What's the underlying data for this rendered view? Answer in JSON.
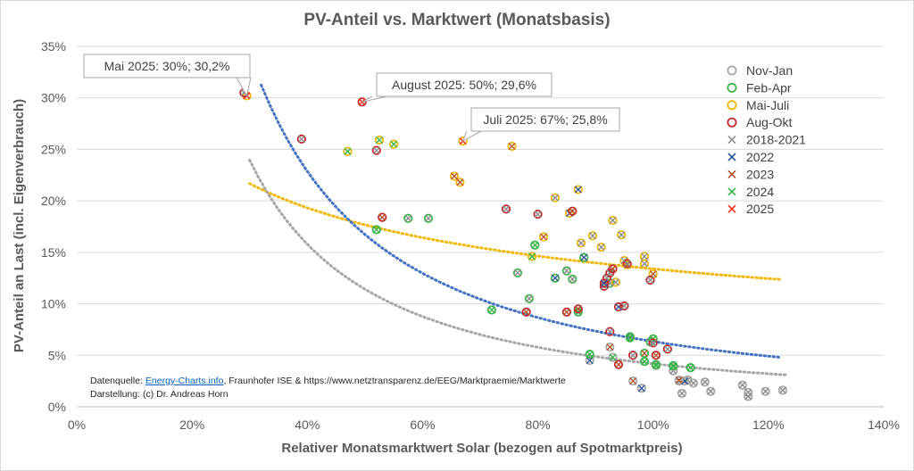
{
  "chart_data": {
    "type": "scatter",
    "title": "PV-Anteil vs. Marktwert (Monatsbasis)",
    "xlabel": "Relativer Monatsmarktwert Solar (bezogen auf Spotmarktpreis)",
    "ylabel": "PV-Anteil an Last (incl. Eigenverbrauch)",
    "xlim": [
      0,
      140
    ],
    "ylim": [
      0,
      35
    ],
    "x_ticks": [
      "0%",
      "20%",
      "40%",
      "60%",
      "80%",
      "100%",
      "120%",
      "140%"
    ],
    "y_ticks": [
      "0%",
      "5%",
      "10%",
      "15%",
      "20%",
      "25%",
      "30%",
      "35%"
    ],
    "grid": true,
    "legend_position": "right",
    "season_colors": {
      "Nov-Jan": "#a6a6a6",
      "Feb-Apr": "#3cb44b",
      "Mai-Juli": "#f2b705",
      "Aug-Okt": "#c0282d"
    },
    "year_colors": {
      "2018-2021": "#8c8c8c",
      "2022": "#2f5597",
      "2023": "#b5532a",
      "2024": "#36b54a",
      "2025": "#ff2a1a"
    },
    "legend": [
      {
        "label": "Nov-Jan",
        "marker": "circle",
        "color": "#a6a6a6"
      },
      {
        "label": "Feb-Apr",
        "marker": "circle",
        "color": "#3cb44b"
      },
      {
        "label": "Mai-Juli",
        "marker": "circle",
        "color": "#f2b705"
      },
      {
        "label": "Aug-Okt",
        "marker": "circle",
        "color": "#c0282d"
      },
      {
        "label": "2018-2021",
        "marker": "cross",
        "color": "#8c8c8c"
      },
      {
        "label": "2022",
        "marker": "cross",
        "color": "#2f5597"
      },
      {
        "label": "2023",
        "marker": "cross",
        "color": "#b5532a"
      },
      {
        "label": "2024",
        "marker": "cross",
        "color": "#36b54a"
      },
      {
        "label": "2025",
        "marker": "cross",
        "color": "#ff2a1a"
      }
    ],
    "points": [
      {
        "x": 104.5,
        "y": 2.5,
        "season": "Nov-Jan",
        "year": "2018-2021"
      },
      {
        "x": 105.0,
        "y": 1.3,
        "season": "Nov-Jan",
        "year": "2018-2021"
      },
      {
        "x": 106.0,
        "y": 2.6,
        "season": "Nov-Jan",
        "year": "2018-2021"
      },
      {
        "x": 107.0,
        "y": 2.3,
        "season": "Nov-Jan",
        "year": "2018-2021"
      },
      {
        "x": 109.0,
        "y": 2.4,
        "season": "Nov-Jan",
        "year": "2018-2021"
      },
      {
        "x": 110.0,
        "y": 1.5,
        "season": "Nov-Jan",
        "year": "2018-2021"
      },
      {
        "x": 115.5,
        "y": 2.1,
        "season": "Nov-Jan",
        "year": "2018-2021"
      },
      {
        "x": 116.5,
        "y": 1.4,
        "season": "Nov-Jan",
        "year": "2018-2021"
      },
      {
        "x": 119.5,
        "y": 1.5,
        "season": "Nov-Jan",
        "year": "2018-2021"
      },
      {
        "x": 122.5,
        "y": 1.6,
        "season": "Nov-Jan",
        "year": "2018-2021"
      },
      {
        "x": 116.5,
        "y": 1.0,
        "season": "Nov-Jan",
        "year": "2018-2021"
      },
      {
        "x": 103.5,
        "y": 3.5,
        "season": "Nov-Jan",
        "year": "2018-2021"
      },
      {
        "x": 105.5,
        "y": 2.5,
        "season": "Nov-Jan",
        "year": "2022"
      },
      {
        "x": 104.5,
        "y": 2.6,
        "season": "Nov-Jan",
        "year": "2023"
      },
      {
        "x": 103.5,
        "y": 3.9,
        "season": "Nov-Jan",
        "year": "2024"
      },
      {
        "x": 89.0,
        "y": 4.5,
        "season": "Nov-Jan",
        "year": "2022"
      },
      {
        "x": 98.0,
        "y": 1.8,
        "season": "Nov-Jan",
        "year": "2022"
      },
      {
        "x": 100.5,
        "y": 4.0,
        "season": "Nov-Jan",
        "year": "2024"
      },
      {
        "x": 96.5,
        "y": 2.5,
        "season": "Nov-Jan",
        "year": "2023"
      },
      {
        "x": 93.0,
        "y": 4.8,
        "season": "Nov-Jan",
        "year": "2024"
      },
      {
        "x": 92.5,
        "y": 5.8,
        "season": "Nov-Jan",
        "year": "2023"
      },
      {
        "x": 52.0,
        "y": 17.2,
        "season": "Feb-Apr",
        "year": "2024"
      },
      {
        "x": 57.5,
        "y": 18.3,
        "season": "Feb-Apr",
        "year": "2018-2021"
      },
      {
        "x": 61.0,
        "y": 18.3,
        "season": "Feb-Apr",
        "year": "2018-2021"
      },
      {
        "x": 72.0,
        "y": 9.4,
        "season": "Feb-Apr",
        "year": "2024"
      },
      {
        "x": 76.5,
        "y": 13.0,
        "season": "Feb-Apr",
        "year": "2018-2021"
      },
      {
        "x": 78.5,
        "y": 10.5,
        "season": "Feb-Apr",
        "year": "2018-2021"
      },
      {
        "x": 79.5,
        "y": 15.7,
        "season": "Feb-Apr",
        "year": "2024"
      },
      {
        "x": 83.0,
        "y": 12.5,
        "season": "Feb-Apr",
        "year": "2022"
      },
      {
        "x": 85.0,
        "y": 13.2,
        "season": "Feb-Apr",
        "year": "2018-2021"
      },
      {
        "x": 86.0,
        "y": 12.4,
        "season": "Feb-Apr",
        "year": "2018-2021"
      },
      {
        "x": 87.0,
        "y": 9.2,
        "season": "Feb-Apr",
        "year": "2024"
      },
      {
        "x": 88.0,
        "y": 14.5,
        "season": "Feb-Apr",
        "year": "2022"
      },
      {
        "x": 89.0,
        "y": 5.1,
        "season": "Feb-Apr",
        "year": "2024"
      },
      {
        "x": 92.5,
        "y": 12.0,
        "season": "Feb-Apr",
        "year": "2018-2021"
      },
      {
        "x": 96.0,
        "y": 6.8,
        "season": "Feb-Apr",
        "year": "2018-2021"
      },
      {
        "x": 96.0,
        "y": 6.7,
        "season": "Feb-Apr",
        "year": "2024"
      },
      {
        "x": 98.5,
        "y": 5.2,
        "season": "Feb-Apr",
        "year": "2023"
      },
      {
        "x": 98.5,
        "y": 4.4,
        "season": "Feb-Apr",
        "year": "2024"
      },
      {
        "x": 100.0,
        "y": 6.6,
        "season": "Feb-Apr",
        "year": "2024"
      },
      {
        "x": 100.5,
        "y": 4.1,
        "season": "Feb-Apr",
        "year": "2024"
      },
      {
        "x": 103.5,
        "y": 4.0,
        "season": "Feb-Apr",
        "year": "2024"
      },
      {
        "x": 106.5,
        "y": 3.8,
        "season": "Feb-Apr",
        "year": "2024"
      },
      {
        "x": 99.5,
        "y": 6.3,
        "season": "Feb-Apr",
        "year": "2018-2021"
      },
      {
        "x": 29.5,
        "y": 30.2,
        "season": "Mai-Juli",
        "year": "2025"
      },
      {
        "x": 47.0,
        "y": 24.8,
        "season": "Mai-Juli",
        "year": "2024"
      },
      {
        "x": 52.5,
        "y": 25.9,
        "season": "Mai-Juli",
        "year": "2024"
      },
      {
        "x": 55.0,
        "y": 25.5,
        "season": "Mai-Juli",
        "year": "2024"
      },
      {
        "x": 65.5,
        "y": 22.4,
        "season": "Mai-Juli",
        "year": "2023"
      },
      {
        "x": 66.5,
        "y": 21.8,
        "season": "Mai-Juli",
        "year": "2023"
      },
      {
        "x": 67.0,
        "y": 25.8,
        "season": "Mai-Juli",
        "year": "2025"
      },
      {
        "x": 75.5,
        "y": 25.3,
        "season": "Mai-Juli",
        "year": "2023"
      },
      {
        "x": 79.0,
        "y": 14.6,
        "season": "Mai-Juli",
        "year": "2024"
      },
      {
        "x": 81.0,
        "y": 16.5,
        "season": "Mai-Juli",
        "year": "2023"
      },
      {
        "x": 83.0,
        "y": 20.3,
        "season": "Mai-Juli",
        "year": "2018-2021"
      },
      {
        "x": 85.5,
        "y": 18.8,
        "season": "Mai-Juli",
        "year": "2022"
      },
      {
        "x": 87.0,
        "y": 21.1,
        "season": "Mai-Juli",
        "year": "2022"
      },
      {
        "x": 87.5,
        "y": 15.9,
        "season": "Mai-Juli",
        "year": "2018-2021"
      },
      {
        "x": 89.5,
        "y": 16.6,
        "season": "Mai-Juli",
        "year": "2018-2021"
      },
      {
        "x": 91.0,
        "y": 15.5,
        "season": "Mai-Juli",
        "year": "2018-2021"
      },
      {
        "x": 93.0,
        "y": 18.1,
        "season": "Mai-Juli",
        "year": "2018-2021"
      },
      {
        "x": 93.5,
        "y": 12.1,
        "season": "Mai-Juli",
        "year": "2018-2021"
      },
      {
        "x": 94.5,
        "y": 16.7,
        "season": "Mai-Juli",
        "year": "2018-2021"
      },
      {
        "x": 95.0,
        "y": 14.2,
        "season": "Mai-Juli",
        "year": "2018-2021"
      },
      {
        "x": 95.5,
        "y": 13.8,
        "season": "Mai-Juli",
        "year": "2023"
      },
      {
        "x": 98.5,
        "y": 13.9,
        "season": "Mai-Juli",
        "year": "2018-2021"
      },
      {
        "x": 98.5,
        "y": 14.6,
        "season": "Mai-Juli",
        "year": "2018-2021"
      },
      {
        "x": 100.0,
        "y": 12.9,
        "season": "Mai-Juli",
        "year": "2023"
      },
      {
        "x": 29.0,
        "y": 30.5,
        "season": "Aug-Okt",
        "year": "2018-2021"
      },
      {
        "x": 39.0,
        "y": 26.0,
        "season": "Aug-Okt",
        "year": "2018-2021"
      },
      {
        "x": 49.5,
        "y": 29.6,
        "season": "Aug-Okt",
        "year": "2025"
      },
      {
        "x": 52.0,
        "y": 24.9,
        "season": "Aug-Okt",
        "year": "2018-2021"
      },
      {
        "x": 53.0,
        "y": 18.4,
        "season": "Aug-Okt",
        "year": "2023"
      },
      {
        "x": 74.5,
        "y": 19.2,
        "season": "Aug-Okt",
        "year": "2018-2021"
      },
      {
        "x": 78.0,
        "y": 9.2,
        "season": "Aug-Okt",
        "year": "2023"
      },
      {
        "x": 80.0,
        "y": 18.7,
        "season": "Aug-Okt",
        "year": "2018-2021"
      },
      {
        "x": 85.0,
        "y": 9.2,
        "season": "Aug-Okt",
        "year": "2023"
      },
      {
        "x": 86.0,
        "y": 19.0,
        "season": "Aug-Okt",
        "year": "2023"
      },
      {
        "x": 87.0,
        "y": 9.5,
        "season": "Aug-Okt",
        "year": "2023"
      },
      {
        "x": 91.5,
        "y": 11.7,
        "season": "Aug-Okt",
        "year": "2018-2021"
      },
      {
        "x": 92.0,
        "y": 12.5,
        "season": "Aug-Okt",
        "year": "2018-2021"
      },
      {
        "x": 92.5,
        "y": 13.0,
        "season": "Aug-Okt",
        "year": "2018-2021"
      },
      {
        "x": 92.5,
        "y": 7.3,
        "season": "Aug-Okt",
        "year": "2018-2021"
      },
      {
        "x": 93.0,
        "y": 13.4,
        "season": "Aug-Okt",
        "year": "2023"
      },
      {
        "x": 94.0,
        "y": 9.7,
        "season": "Aug-Okt",
        "year": "2022"
      },
      {
        "x": 95.0,
        "y": 9.8,
        "season": "Aug-Okt",
        "year": "2018-2021"
      },
      {
        "x": 95.5,
        "y": 13.9,
        "season": "Aug-Okt",
        "year": "2018-2021"
      },
      {
        "x": 96.5,
        "y": 5.0,
        "season": "Aug-Okt",
        "year": "2018-2021"
      },
      {
        "x": 99.5,
        "y": 12.3,
        "season": "Aug-Okt",
        "year": "2018-2021"
      },
      {
        "x": 100.0,
        "y": 6.2,
        "season": "Aug-Okt",
        "year": "2018-2021"
      },
      {
        "x": 100.5,
        "y": 5.0,
        "season": "Aug-Okt",
        "year": "2023"
      },
      {
        "x": 102.5,
        "y": 5.6,
        "season": "Aug-Okt",
        "year": "2018-2021"
      },
      {
        "x": 94.0,
        "y": 4.1,
        "season": "Aug-Okt",
        "year": "2023"
      },
      {
        "x": 91.5,
        "y": 12.0,
        "season": "Aug-Okt",
        "year": "2022"
      }
    ],
    "trendlines": [
      {
        "color": "#f2b705",
        "x": [
          30,
          122
        ],
        "a": 84.5,
        "b": -0.4
      },
      {
        "color": "#4472c4",
        "x": [
          32,
          122
        ],
        "a": 4000,
        "b": -1.4
      },
      {
        "color": "#a6a6a6",
        "x": [
          30,
          123
        ],
        "a": 3320,
        "b": -1.45
      }
    ],
    "callouts": [
      {
        "text": "Mai 2025: 30%; 30,2%",
        "x": 29.5,
        "y": 30.2
      },
      {
        "text": "August 2025: 50%; 29,6%",
        "x": 49.5,
        "y": 29.6
      },
      {
        "text": "Juli 2025: 67%; 25,8%",
        "x": 67.0,
        "y": 25.8
      }
    ],
    "source": {
      "prefix": "Datenquelle: ",
      "link": "Energy-Charts.info",
      "suffix": ", Fraunhofer ISE & https://www.netztransparenz.de/EEG/Marktpraemie/Marktwerte",
      "credit": "Darstellung: (c) Dr. Andreas Horn"
    }
  }
}
